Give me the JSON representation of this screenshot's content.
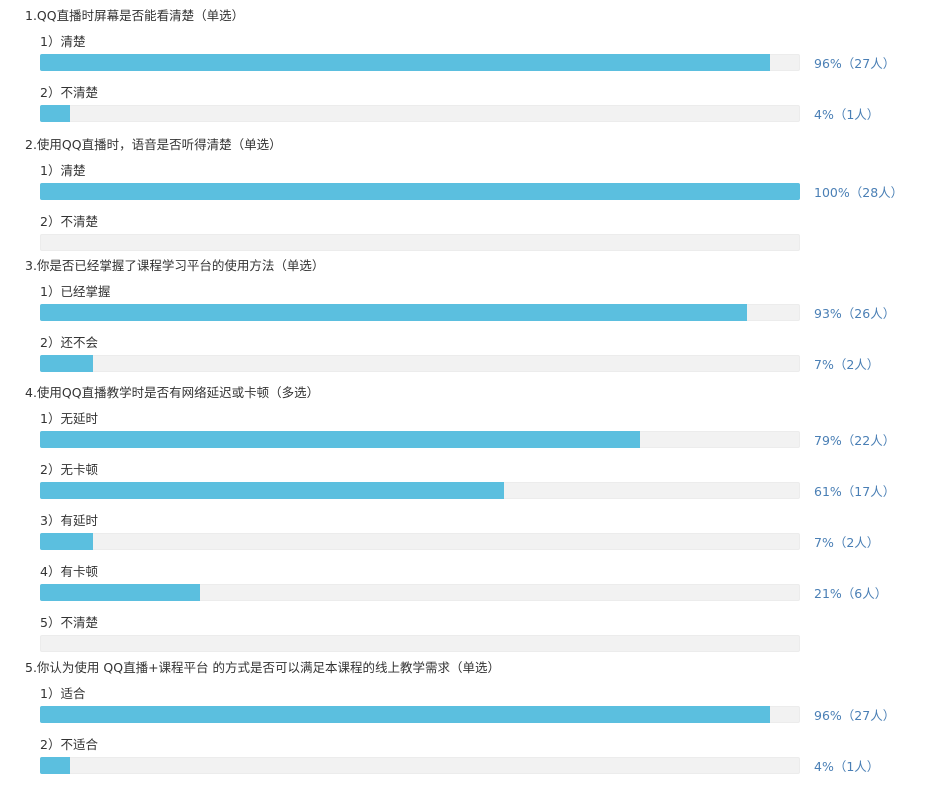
{
  "colors": {
    "bar_fill": "#5bbfdf",
    "bar_track": "#f2f2f2",
    "stat_text": "#4a7fb5",
    "text": "#333333"
  },
  "chart_data": {
    "type": "bar",
    "orientation": "horizontal",
    "value_unit": "percent",
    "xlim": [
      0,
      100
    ],
    "questions": [
      {
        "title": "1.QQ直播时屏幕是否能看清楚（单选）",
        "options": [
          {
            "label": "1）清楚",
            "value": 96,
            "stat": "96%（27人）"
          },
          {
            "label": "2）不清楚",
            "value": 4,
            "stat": "4%（1人）"
          }
        ]
      },
      {
        "title": "2.使用QQ直播时，语音是否听得清楚（单选）",
        "options": [
          {
            "label": "1）清楚",
            "value": 100,
            "stat": "100%（28人）"
          },
          {
            "label": "2）不清楚",
            "value": 0,
            "stat": ""
          }
        ]
      },
      {
        "title": "3.你是否已经掌握了课程学习平台的使用方法（单选）",
        "options": [
          {
            "label": "1）已经掌握",
            "value": 93,
            "stat": "93%（26人）"
          },
          {
            "label": "2）还不会",
            "value": 7,
            "stat": "7%（2人）"
          }
        ]
      },
      {
        "title": "4.使用QQ直播教学时是否有网络延迟或卡顿（多选）",
        "options": [
          {
            "label": "1）无延时",
            "value": 79,
            "stat": "79%（22人）"
          },
          {
            "label": "2）无卡顿",
            "value": 61,
            "stat": "61%（17人）"
          },
          {
            "label": "3）有延时",
            "value": 7,
            "stat": "7%（2人）"
          },
          {
            "label": "4）有卡顿",
            "value": 21,
            "stat": "21%（6人）"
          },
          {
            "label": "5）不清楚",
            "value": 0,
            "stat": ""
          }
        ]
      },
      {
        "title": "5.你认为使用  QQ直播+课程平台  的方式是否可以满足本课程的线上教学需求（单选）",
        "options": [
          {
            "label": "1）适合",
            "value": 96,
            "stat": "96%（27人）"
          },
          {
            "label": "2）不适合",
            "value": 4,
            "stat": "4%（1人）"
          }
        ]
      }
    ]
  }
}
